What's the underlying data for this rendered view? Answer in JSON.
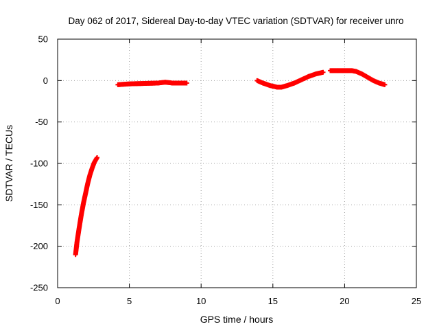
{
  "chart_data": {
    "type": "scatter",
    "title": "Day 062 of 2017, Sidereal Day-to-day VTEC variation (SDTVAR) for receiver unro",
    "xlabel": "GPS time / hours",
    "ylabel": "SDTVAR / TECUs",
    "xlim": [
      0,
      25
    ],
    "ylim": [
      -250,
      50
    ],
    "xticks": [
      "0",
      "5",
      "10",
      "15",
      "20",
      "25"
    ],
    "yticks": [
      "-250",
      "-200",
      "-150",
      "-100",
      "-50",
      "0",
      "50"
    ],
    "grid": true,
    "marker": "plus",
    "series": [
      {
        "color": "#ff0000",
        "segments": [
          {
            "x": [
              1.25,
              1.35,
              1.5,
              1.65,
              1.8,
              1.95,
              2.1,
              2.25,
              2.4,
              2.55,
              2.75
            ],
            "y": [
              -210,
              -195,
              -178,
              -162,
              -148,
              -136,
              -124,
              -114,
              -106,
              -99,
              -93
            ]
          },
          {
            "x": [
              4.2,
              5.0,
              6.0,
              7.0,
              7.5,
              8.0,
              9.0
            ],
            "y": [
              -5,
              -4,
              -3.5,
              -3,
              -2,
              -3,
              -3
            ]
          },
          {
            "x": [
              13.9,
              14.3,
              14.8,
              15.3,
              15.6,
              16.0,
              16.5,
              17.0,
              17.5,
              18.0,
              18.5
            ],
            "y": [
              0,
              -3,
              -6,
              -8,
              -8,
              -6,
              -3,
              1,
              5,
              8,
              10
            ]
          },
          {
            "x": [
              19.0,
              19.5,
              20.0,
              20.5,
              20.8,
              21.2,
              21.6,
              22.0,
              22.4,
              22.8
            ],
            "y": [
              12,
              12,
              12,
              12,
              11,
              8,
              4,
              0,
              -3,
              -5
            ]
          }
        ]
      }
    ]
  }
}
